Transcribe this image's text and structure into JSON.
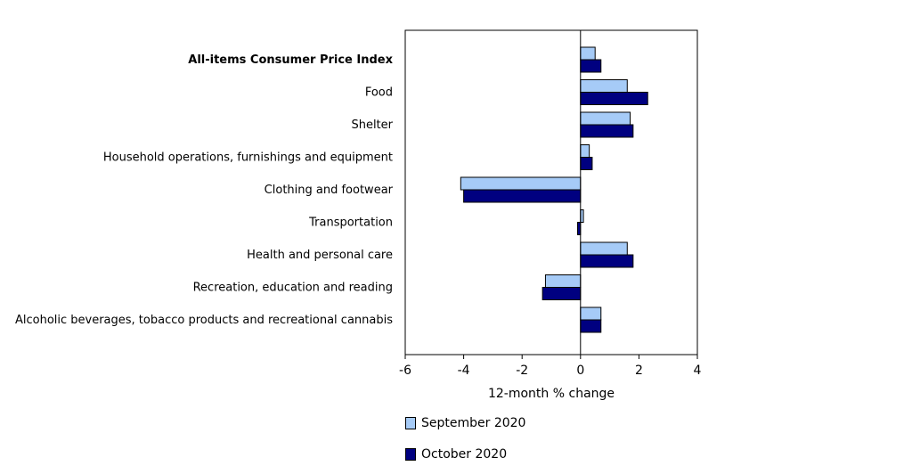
{
  "chart_data": {
    "type": "bar",
    "orientation": "horizontal",
    "categories": [
      "All-items Consumer Price Index",
      "Food",
      "Shelter",
      "Household operations, furnishings and equipment",
      "Clothing and footwear",
      "Transportation",
      "Health and personal care",
      "Recreation, education and reading",
      "Alcoholic beverages, tobacco products and recreational cannabis"
    ],
    "bold_categories": [
      "All-items Consumer Price Index"
    ],
    "series": [
      {
        "name": "September 2020",
        "color": "#a6cbf7",
        "values": [
          0.5,
          1.6,
          1.7,
          0.3,
          -4.1,
          0.1,
          1.6,
          -1.2,
          0.7
        ]
      },
      {
        "name": "October 2020",
        "color": "#000080",
        "values": [
          0.7,
          2.3,
          1.8,
          0.4,
          -4.0,
          -0.1,
          1.8,
          -1.3,
          0.7
        ]
      }
    ],
    "xlabel": "12-month % change",
    "xlim": [
      -6,
      4
    ],
    "xticks": [
      -6,
      -4,
      -2,
      0,
      2,
      4
    ],
    "grid": false,
    "legend_position": "bottom"
  }
}
